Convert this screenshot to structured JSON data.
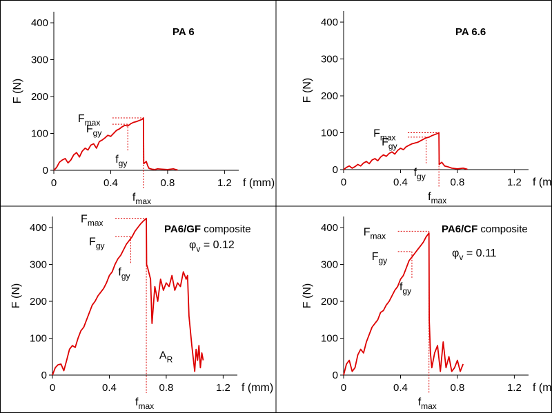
{
  "chart_data": [
    {
      "type": "line",
      "title": "PA 6",
      "title_suffix": "",
      "xlabel": "f (mm)",
      "ylabel": "F (N)",
      "xlim": [
        0,
        1.3
      ],
      "ylim": [
        0,
        430
      ],
      "xticks": [
        "0",
        "0.4",
        "0.8",
        "1.2"
      ],
      "xtick_values": [
        0,
        0.4,
        0.8,
        1.2
      ],
      "yticks": [
        "0",
        "100",
        "200",
        "300",
        "400"
      ],
      "ytick_values": [
        0,
        100,
        200,
        300,
        400
      ],
      "series": [
        {
          "color": "#dd0000",
          "x": [
            0,
            0.02,
            0.04,
            0.06,
            0.08,
            0.1,
            0.12,
            0.14,
            0.16,
            0.18,
            0.2,
            0.22,
            0.24,
            0.26,
            0.28,
            0.3,
            0.32,
            0.34,
            0.36,
            0.38,
            0.4,
            0.42,
            0.44,
            0.46,
            0.48,
            0.5,
            0.52,
            0.54,
            0.56,
            0.58,
            0.6,
            0.62,
            0.63,
            0.632,
            0.65,
            0.66,
            0.67,
            0.69,
            0.71,
            0.73,
            0.76,
            0.8,
            0.84,
            0.87
          ],
          "y": [
            0,
            8,
            22,
            28,
            32,
            20,
            28,
            42,
            48,
            36,
            52,
            60,
            55,
            68,
            72,
            60,
            78,
            82,
            88,
            95,
            92,
            100,
            108,
            112,
            118,
            122,
            120,
            126,
            130,
            132,
            135,
            138,
            142,
            18,
            24,
            12,
            5,
            3,
            2,
            4,
            3,
            2,
            4,
            1
          ]
        }
      ],
      "annotations": {
        "fmax_label": "F",
        "fmax_sub": "max",
        "fgy_label": "F",
        "fgy_sub": "gy",
        "fgy_x_label": "f",
        "fgy_x_sub": "gy",
        "fmax_x_label": "f",
        "fmax_x_sub": "max",
        "fmax_value": [
          0.63,
          142
        ],
        "fgy_value": [
          0.52,
          125
        ]
      }
    },
    {
      "type": "line",
      "title": "PA 6.6",
      "title_suffix": "",
      "xlabel": "f (mm)",
      "ylabel": "F (N)",
      "xlim": [
        0,
        1.3
      ],
      "ylim": [
        0,
        430
      ],
      "xticks": [
        "0",
        "0.4",
        "0.8",
        "1.2"
      ],
      "xtick_values": [
        0,
        0.4,
        0.8,
        1.2
      ],
      "yticks": [
        "0",
        "100",
        "200",
        "300",
        "400"
      ],
      "ytick_values": [
        0,
        100,
        200,
        300,
        400
      ],
      "series": [
        {
          "color": "#dd0000",
          "x": [
            0,
            0.02,
            0.04,
            0.06,
            0.08,
            0.1,
            0.12,
            0.14,
            0.16,
            0.18,
            0.2,
            0.22,
            0.24,
            0.26,
            0.28,
            0.3,
            0.32,
            0.34,
            0.36,
            0.38,
            0.4,
            0.42,
            0.44,
            0.46,
            0.48,
            0.5,
            0.52,
            0.54,
            0.56,
            0.58,
            0.6,
            0.62,
            0.64,
            0.66,
            0.67,
            0.672,
            0.69,
            0.71,
            0.73,
            0.76,
            0.8,
            0.84,
            0.87
          ],
          "y": [
            0,
            6,
            10,
            4,
            8,
            14,
            10,
            18,
            22,
            16,
            26,
            30,
            24,
            34,
            40,
            36,
            44,
            48,
            42,
            52,
            58,
            54,
            62,
            66,
            70,
            72,
            74,
            78,
            82,
            86,
            88,
            92,
            95,
            98,
            100,
            14,
            20,
            10,
            8,
            4,
            2,
            4,
            1
          ]
        }
      ],
      "annotations": {
        "fmax_label": "F",
        "fmax_sub": "max",
        "fgy_label": "F",
        "fgy_sub": "gy",
        "fgy_x_label": "f",
        "fgy_x_sub": "gy",
        "fmax_x_label": "f",
        "fmax_x_sub": "max",
        "fmax_value": [
          0.67,
          100
        ],
        "fgy_value": [
          0.58,
          88
        ]
      }
    },
    {
      "type": "line",
      "title": "PA6/GF",
      "title_suffix": " composite",
      "extra_label": "φ",
      "extra_sub": "v",
      "extra_value": " = 0.12",
      "xlabel": "f (mm)",
      "ylabel": "F (N)",
      "xlim": [
        0,
        1.3
      ],
      "ylim": [
        0,
        430
      ],
      "xticks": [
        "0",
        "0.4",
        "0.8",
        "1.2"
      ],
      "xtick_values": [
        0,
        0.4,
        0.8,
        1.2
      ],
      "yticks": [
        "0",
        "100",
        "200",
        "300",
        "400"
      ],
      "ytick_values": [
        0,
        100,
        200,
        300,
        400
      ],
      "series": [
        {
          "color": "#dd0000",
          "x": [
            0,
            0.02,
            0.04,
            0.06,
            0.08,
            0.1,
            0.12,
            0.14,
            0.16,
            0.18,
            0.2,
            0.22,
            0.24,
            0.26,
            0.28,
            0.3,
            0.32,
            0.34,
            0.36,
            0.38,
            0.4,
            0.42,
            0.44,
            0.46,
            0.48,
            0.5,
            0.52,
            0.54,
            0.56,
            0.58,
            0.6,
            0.62,
            0.64,
            0.66,
            0.662,
            0.67,
            0.69,
            0.7,
            0.72,
            0.74,
            0.76,
            0.78,
            0.8,
            0.82,
            0.84,
            0.86,
            0.88,
            0.9,
            0.92,
            0.94,
            0.95,
            0.96,
            0.98,
            1.0,
            1.01,
            1.02,
            1.03,
            1.04,
            1.05,
            1.06
          ],
          "y": [
            0,
            20,
            28,
            30,
            12,
            40,
            70,
            80,
            75,
            100,
            120,
            130,
            150,
            170,
            190,
            200,
            215,
            225,
            235,
            250,
            270,
            280,
            300,
            315,
            325,
            340,
            355,
            365,
            375,
            390,
            400,
            410,
            418,
            425,
            300,
            290,
            260,
            140,
            240,
            200,
            260,
            230,
            250,
            240,
            270,
            230,
            250,
            240,
            280,
            260,
            270,
            160,
            80,
            10,
            70,
            40,
            80,
            20,
            60,
            40
          ]
        }
      ],
      "annotations": {
        "fmax_label": "F",
        "fmax_sub": "max",
        "fgy_label": "F",
        "fgy_sub": "gy",
        "fgy_x_label": "f",
        "fgy_x_sub": "gy",
        "fmax_x_label": "f",
        "fmax_x_sub": "max",
        "ar_label": "A",
        "ar_sub": "R",
        "fmax_value": [
          0.66,
          425
        ],
        "fgy_value": [
          0.55,
          375
        ]
      }
    },
    {
      "type": "line",
      "title": "PA6/CF",
      "title_suffix": " composite",
      "extra_label": "φ",
      "extra_sub": "v",
      "extra_value": " = 0.11",
      "xlabel": "f (mm)",
      "ylabel": "F (N)",
      "xlim": [
        0,
        1.3
      ],
      "ylim": [
        0,
        430
      ],
      "xticks": [
        "0",
        "0.4",
        "0.8",
        "1.2"
      ],
      "xtick_values": [
        0,
        0.4,
        0.8,
        1.2
      ],
      "yticks": [
        "0",
        "100",
        "200",
        "300",
        "400"
      ],
      "ytick_values": [
        0,
        100,
        200,
        300,
        400
      ],
      "series": [
        {
          "color": "#dd0000",
          "x": [
            0,
            0.02,
            0.04,
            0.06,
            0.08,
            0.1,
            0.12,
            0.14,
            0.16,
            0.18,
            0.2,
            0.22,
            0.24,
            0.26,
            0.28,
            0.3,
            0.32,
            0.34,
            0.36,
            0.38,
            0.4,
            0.42,
            0.44,
            0.46,
            0.48,
            0.5,
            0.52,
            0.54,
            0.56,
            0.58,
            0.6,
            0.602,
            0.61,
            0.62,
            0.64,
            0.66,
            0.68,
            0.7,
            0.72,
            0.74,
            0.76,
            0.78,
            0.8,
            0.82,
            0.84
          ],
          "y": [
            0,
            30,
            40,
            10,
            20,
            55,
            70,
            60,
            90,
            110,
            130,
            140,
            150,
            170,
            175,
            190,
            200,
            215,
            230,
            240,
            260,
            270,
            290,
            310,
            320,
            330,
            340,
            350,
            360,
            375,
            385,
            150,
            60,
            20,
            60,
            80,
            10,
            90,
            20,
            50,
            10,
            20,
            40,
            10,
            30
          ]
        }
      ],
      "annotations": {
        "fmax_label": "F",
        "fmax_sub": "max",
        "fgy_label": "F",
        "fgy_sub": "gy",
        "fgy_x_label": "f",
        "fgy_x_sub": "gy",
        "fmax_x_label": "f",
        "fmax_x_sub": "max",
        "fmax_value": [
          0.6,
          390
        ],
        "fgy_value": [
          0.48,
          335
        ]
      }
    }
  ]
}
